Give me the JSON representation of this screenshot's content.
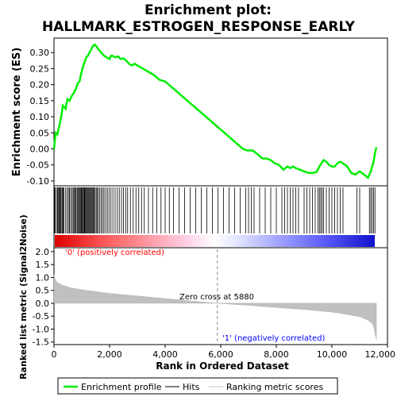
{
  "chart_data": {
    "type": "line",
    "title": "Enrichment plot:",
    "subtitle": "HALLMARK_ESTROGEN_RESPONSE_EARLY",
    "es_panel": {
      "ylabel": "Enrichment score (ES)",
      "ylim": [
        -0.115,
        0.345
      ],
      "yticks": [
        -0.1,
        -0.05,
        0.0,
        0.05,
        0.1,
        0.15,
        0.2,
        0.25,
        0.3
      ],
      "ytick_labels": [
        "-0.10",
        "-0.05",
        "0.00",
        "0.05",
        "0.10",
        "0.15",
        "0.20",
        "0.25",
        "0.30"
      ],
      "series": {
        "name": "Enrichment profile",
        "color": "#00ee00",
        "x": [
          0,
          60,
          120,
          200,
          260,
          320,
          420,
          480,
          560,
          640,
          720,
          800,
          860,
          920,
          980,
          1040,
          1100,
          1160,
          1220,
          1280,
          1340,
          1400,
          1460,
          1520,
          1600,
          1700,
          1800,
          1900,
          2000,
          2050,
          2100,
          2200,
          2300,
          2400,
          2500,
          2600,
          2700,
          2800,
          2900,
          3000,
          3200,
          3400,
          3600,
          3800,
          4000,
          4200,
          4400,
          4600,
          4800,
          5000,
          5200,
          5400,
          5600,
          5800,
          6000,
          6200,
          6400,
          6600,
          6800,
          6950,
          7050,
          7150,
          7300,
          7500,
          7650,
          7800,
          7950,
          8100,
          8250,
          8400,
          8500,
          8600,
          8700,
          8850,
          9000,
          9150,
          9300,
          9450,
          9550,
          9620,
          9700,
          9800,
          9900,
          10000,
          10100,
          10200,
          10300,
          10400,
          10550,
          10700,
          10850,
          11000,
          11150,
          11300,
          11400,
          11500,
          11560,
          11600
        ],
        "values": [
          0.0,
          0.05,
          0.045,
          0.075,
          0.1,
          0.135,
          0.125,
          0.155,
          0.15,
          0.165,
          0.175,
          0.19,
          0.205,
          0.21,
          0.235,
          0.255,
          0.27,
          0.285,
          0.29,
          0.3,
          0.31,
          0.32,
          0.325,
          0.32,
          0.31,
          0.3,
          0.29,
          0.285,
          0.28,
          0.29,
          0.29,
          0.285,
          0.288,
          0.28,
          0.282,
          0.275,
          0.265,
          0.26,
          0.265,
          0.26,
          0.25,
          0.24,
          0.23,
          0.215,
          0.21,
          0.195,
          0.18,
          0.165,
          0.15,
          0.135,
          0.12,
          0.105,
          0.09,
          0.075,
          0.06,
          0.045,
          0.03,
          0.015,
          0.0,
          -0.005,
          -0.005,
          -0.005,
          -0.015,
          -0.03,
          -0.03,
          -0.035,
          -0.045,
          -0.05,
          -0.065,
          -0.055,
          -0.06,
          -0.055,
          -0.06,
          -0.065,
          -0.07,
          -0.075,
          -0.075,
          -0.072,
          -0.055,
          -0.045,
          -0.035,
          -0.04,
          -0.05,
          -0.055,
          -0.055,
          -0.045,
          -0.04,
          -0.045,
          -0.055,
          -0.075,
          -0.08,
          -0.07,
          -0.08,
          -0.09,
          -0.07,
          -0.04,
          -0.01,
          0.005
        ]
      }
    },
    "hits_panel": {
      "hits": [
        20,
        40,
        90,
        130,
        150,
        180,
        210,
        230,
        260,
        300,
        330,
        360,
        420,
        470,
        520,
        560,
        600,
        650,
        690,
        720,
        760,
        790,
        830,
        860,
        890,
        920,
        950,
        980,
        1000,
        1030,
        1060,
        1090,
        1110,
        1140,
        1170,
        1200,
        1230,
        1260,
        1290,
        1320,
        1350,
        1380,
        1410,
        1440,
        1480,
        1520,
        1560,
        1600,
        1650,
        1700,
        1750,
        1800,
        1860,
        1920,
        1980,
        2050,
        2120,
        2200,
        2280,
        2350,
        2430,
        2500,
        2580,
        2650,
        2750,
        2850,
        2950,
        3050,
        3150,
        3250,
        3400,
        3550,
        3700,
        3850,
        4000,
        4150,
        4300,
        4500,
        4700,
        4900,
        5100,
        5300,
        5500,
        5700,
        5900,
        6100,
        6300,
        6500,
        6700,
        6900,
        7000,
        7100,
        7200,
        7400,
        7600,
        7800,
        8000,
        8200,
        8300,
        8400,
        8500,
        8600,
        8700,
        8800,
        9000,
        9100,
        9200,
        9300,
        9400,
        9500,
        9550,
        9600,
        9650,
        9700,
        9800,
        9900,
        10000,
        10100,
        10200,
        10300,
        10400,
        10900,
        11000,
        11350,
        11400,
        11450,
        11500,
        11550
      ]
    },
    "metric_panel": {
      "ylabel": "Ranked list metric (Signal2Noise)",
      "ylim": [
        -1.6,
        2.15
      ],
      "yticks": [
        -1.5,
        -1.0,
        -0.5,
        0.0,
        0.5,
        1.0,
        1.5,
        2.0
      ],
      "ytick_labels": [
        "-1.5",
        "-1.0",
        "-0.5",
        "0.0",
        "0.5",
        "1.0",
        "1.5",
        "2.0"
      ],
      "color": "#c0c0c0",
      "x": [
        0,
        30,
        80,
        150,
        300,
        600,
        1000,
        1500,
        2000,
        3000,
        4000,
        5000,
        5880,
        7000,
        8000,
        9000,
        10000,
        10500,
        11000,
        11300,
        11450,
        11520,
        11560,
        11600
      ],
      "values": [
        1.1,
        0.95,
        0.85,
        0.78,
        0.7,
        0.6,
        0.52,
        0.45,
        0.38,
        0.28,
        0.18,
        0.08,
        0.0,
        -0.08,
        -0.16,
        -0.24,
        -0.34,
        -0.42,
        -0.52,
        -0.65,
        -0.78,
        -0.95,
        -1.2,
        -1.4
      ]
    },
    "annotations": {
      "zero_cross": "Zero cross at 5880",
      "zero_cross_x": 5880,
      "pos_label": "'0' (positively correlated)",
      "neg_label": "'1' (negatively correlated)",
      "pos_color": "#ff0000",
      "neg_color": "#0000ff"
    },
    "xaxis": {
      "xlabel": "Rank in Ordered Dataset",
      "xlim": [
        0,
        12000
      ],
      "xticks": [
        0,
        2000,
        4000,
        6000,
        8000,
        10000,
        12000
      ],
      "xtick_labels": [
        "0",
        "2,000",
        "4,000",
        "6,000",
        "8,000",
        "10,000",
        "12,000"
      ],
      "n_genes": 11600
    },
    "legend": {
      "placement": "bottom",
      "items": [
        {
          "label": "Enrichment profile",
          "color": "#00ee00"
        },
        {
          "label": "Hits",
          "color": "#000000"
        },
        {
          "label": "Ranking metric scores",
          "color": "#c0c0c0"
        }
      ]
    }
  }
}
